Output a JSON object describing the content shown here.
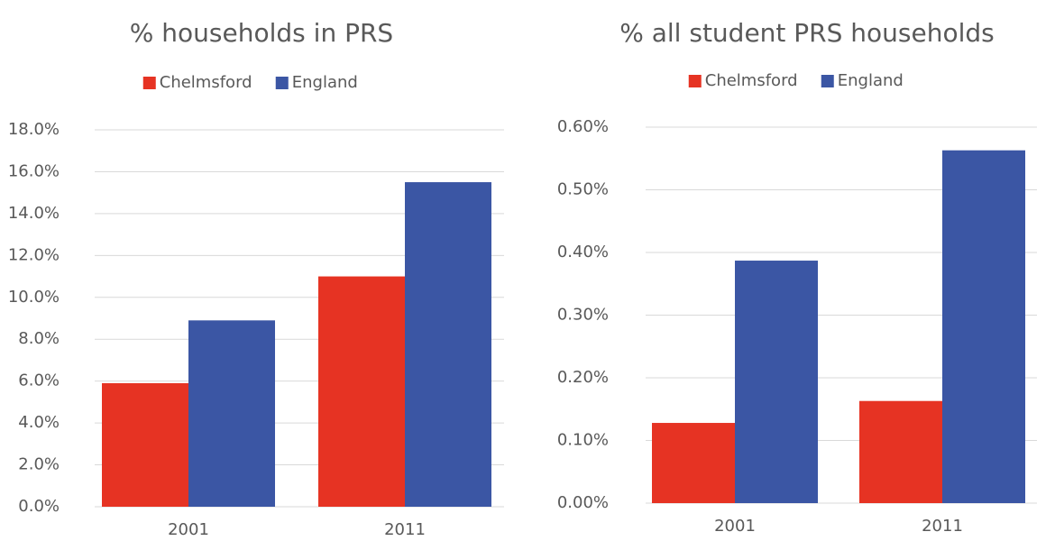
{
  "chart_data": [
    {
      "type": "bar",
      "title": "% households in PRS",
      "categories": [
        "2001",
        "2011"
      ],
      "series": [
        {
          "name": "Chelmsford",
          "color": "#e63323",
          "values": [
            5.9,
            11.0
          ]
        },
        {
          "name": "England",
          "color": "#3b56a4",
          "values": [
            8.9,
            15.5
          ]
        }
      ],
      "ylim": [
        0,
        18
      ],
      "yticks": [
        {
          "value": 0,
          "label": "0.0%"
        },
        {
          "value": 2,
          "label": "2.0%"
        },
        {
          "value": 4,
          "label": "4.0%"
        },
        {
          "value": 6,
          "label": "6.0%"
        },
        {
          "value": 8,
          "label": "8.0%"
        },
        {
          "value": 10,
          "label": "10.0%"
        },
        {
          "value": 12,
          "label": "12.0%"
        },
        {
          "value": 14,
          "label": "14.0%"
        },
        {
          "value": 16,
          "label": "16.0%"
        },
        {
          "value": 18,
          "label": "18.0%"
        }
      ],
      "grid": true,
      "legend": "top"
    },
    {
      "type": "bar",
      "title": "% all student PRS households",
      "categories": [
        "2001",
        "2011"
      ],
      "series": [
        {
          "name": "Chelmsford",
          "color": "#e63323",
          "values": [
            0.128,
            0.163
          ]
        },
        {
          "name": "England",
          "color": "#3b56a4",
          "values": [
            0.387,
            0.563
          ]
        }
      ],
      "ylim": [
        0,
        0.6
      ],
      "yticks": [
        {
          "value": 0,
          "label": "0.00%"
        },
        {
          "value": 0.1,
          "label": "0.10%"
        },
        {
          "value": 0.2,
          "label": "0.20%"
        },
        {
          "value": 0.3,
          "label": "0.30%"
        },
        {
          "value": 0.4,
          "label": "0.40%"
        },
        {
          "value": 0.5,
          "label": "0.50%"
        },
        {
          "value": 0.6,
          "label": "0.60%"
        }
      ],
      "grid": true,
      "legend": "top"
    }
  ]
}
